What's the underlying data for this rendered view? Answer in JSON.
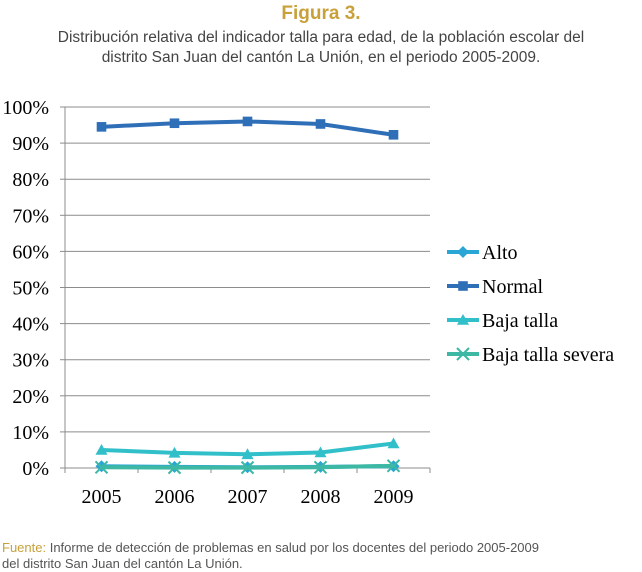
{
  "figure": {
    "label": "Figura 3.",
    "label_color": "#c8a13a",
    "subtitle_line1": "Distribución relativa del indicador talla para edad, de la población escolar del",
    "subtitle_line2": "distrito San Juan del cantón La Unión, en el periodo 2005-2009."
  },
  "chart_data": {
    "type": "line",
    "x": [
      "2005",
      "2006",
      "2007",
      "2008",
      "2009"
    ],
    "ylim": [
      0,
      100
    ],
    "y_ticks": [
      "0%",
      "10%",
      "20%",
      "30%",
      "40%",
      "50%",
      "60%",
      "70%",
      "80%",
      "90%",
      "100%"
    ],
    "grid": "horizontal",
    "legend_position": "right",
    "series": [
      {
        "name": "Alto",
        "values": [
          0.5,
          0.3,
          0.2,
          0.3,
          0.5
        ],
        "color": "#29a6d6",
        "marker": "diamond"
      },
      {
        "name": "Normal",
        "values": [
          94.5,
          95.5,
          96,
          95.3,
          92.3
        ],
        "color": "#2e6fb7",
        "marker": "square"
      },
      {
        "name": "Baja talla",
        "values": [
          5,
          4.2,
          3.8,
          4.3,
          6.8
        ],
        "color": "#31c0c9",
        "marker": "triangle"
      },
      {
        "name": "Baja talla severa",
        "values": [
          0.2,
          0.1,
          0.1,
          0.2,
          0.6
        ],
        "color": "#3cb8a4",
        "marker": "x"
      }
    ]
  },
  "source": {
    "label": "Fuente:",
    "label_color": "#c8a13a",
    "line1": "Informe de detección de problemas en salud por los docentes del periodo 2005-2009",
    "line2": "del distrito San Juan del cantón La Unión."
  }
}
